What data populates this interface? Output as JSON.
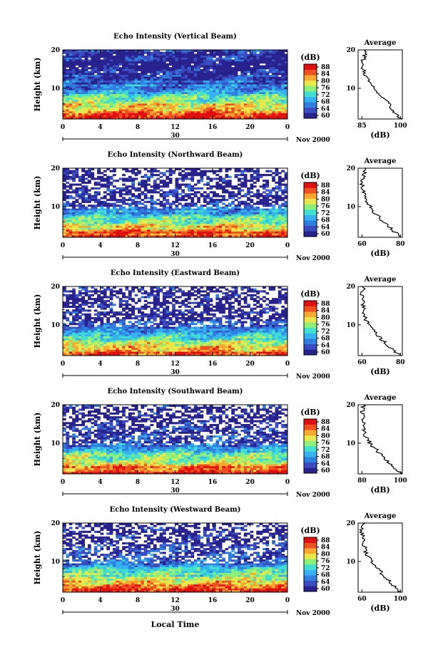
{
  "figure": {
    "xlabel": "Local Time",
    "panels": [
      {
        "title": "Echo Intensity (Vertical Beam)",
        "ylabel": "Height (km)",
        "yticks": [
          "20",
          "10"
        ],
        "xticks": [
          "0",
          "4",
          "8",
          "12",
          "16",
          "20",
          "0"
        ],
        "date_mid": "30",
        "date_right": "Nov 2000",
        "cbar_unit": "(dB)",
        "cbar_ticks": [
          "88",
          "84",
          "80",
          "76",
          "72",
          "68",
          "64",
          "60"
        ],
        "avg_title": "Average",
        "avg_xticks": [
          "85",
          "100"
        ],
        "avg_xlabel": "(dB)",
        "avg_yticks": [
          "20",
          "10"
        ]
      },
      {
        "title": "Echo Intensity (Northward Beam)",
        "ylabel": "Height (km)",
        "yticks": [
          "20",
          "10"
        ],
        "xticks": [
          "0",
          "4",
          "8",
          "12",
          "16",
          "20",
          "0"
        ],
        "date_mid": "30",
        "date_right": "Nov 2000",
        "cbar_unit": "(dB)",
        "cbar_ticks": [
          "88",
          "84",
          "80",
          "76",
          "72",
          "68",
          "64",
          "60"
        ],
        "avg_title": "Average",
        "avg_xticks": [
          "60",
          "80"
        ],
        "avg_xlabel": "(dB)",
        "avg_yticks": [
          "20",
          "10"
        ]
      },
      {
        "title": "Echo Intensity (Eastward Beam)",
        "ylabel": "Height (km)",
        "yticks": [
          "20",
          "10"
        ],
        "xticks": [
          "0",
          "4",
          "8",
          "12",
          "16",
          "20",
          "0"
        ],
        "date_mid": "30",
        "date_right": "Nov 2000",
        "cbar_unit": "(dB)",
        "cbar_ticks": [
          "88",
          "84",
          "80",
          "76",
          "72",
          "68",
          "64",
          "60"
        ],
        "avg_title": "Average",
        "avg_xticks": [
          "60",
          "80"
        ],
        "avg_xlabel": "(dB)",
        "avg_yticks": [
          "20",
          "10"
        ]
      },
      {
        "title": "Echo Intensity (Southward Beam)",
        "ylabel": "Height (km)",
        "yticks": [
          "20",
          "10"
        ],
        "xticks": [
          "0",
          "4",
          "8",
          "12",
          "16",
          "20",
          "0"
        ],
        "date_mid": "30",
        "date_right": "Nov 2000",
        "cbar_unit": "(dB)",
        "cbar_ticks": [
          "88",
          "84",
          "80",
          "76",
          "72",
          "68",
          "64",
          "60"
        ],
        "avg_title": "Average",
        "avg_xticks": [
          "80",
          "100"
        ],
        "avg_xlabel": "(dB)",
        "avg_yticks": [
          "20",
          "10"
        ]
      },
      {
        "title": "Echo Intensity (Westward Beam)",
        "ylabel": "Height (km)",
        "yticks": [
          "20",
          "10"
        ],
        "xticks": [
          "0",
          "4",
          "8",
          "12",
          "16",
          "20",
          "0"
        ],
        "date_mid": "30",
        "date_right": "Nov 2000",
        "cbar_unit": "(dB)",
        "cbar_ticks": [
          "88",
          "84",
          "80",
          "76",
          "72",
          "68",
          "64",
          "60"
        ],
        "avg_title": "Average",
        "avg_xticks": [
          "60",
          "100"
        ],
        "avg_xlabel": "(dB)",
        "avg_yticks": [
          "20",
          "10"
        ]
      }
    ]
  },
  "colors": {
    "colormap": [
      "#27228e",
      "#3b4cc0",
      "#2f7fe0",
      "#36b2f0",
      "#3fe0d0",
      "#8cf07a",
      "#e8e84a",
      "#f8a830",
      "#f05020",
      "#e01010"
    ]
  },
  "chart_data": [
    {
      "type": "heatmap",
      "title": "Echo Intensity (Vertical Beam)",
      "ylabel": "Height (km)",
      "xlim_hours": [
        0,
        24
      ],
      "ylim_km": [
        2,
        20
      ],
      "colorbar_db": [
        60,
        88
      ],
      "profile": {
        "height_km": [
          2,
          4,
          6,
          8,
          10,
          12,
          14,
          16,
          18,
          20
        ],
        "db": [
          100,
          97,
          95,
          91,
          88,
          86,
          84,
          83,
          84,
          85
        ]
      }
    },
    {
      "type": "heatmap",
      "title": "Echo Intensity (Northward Beam)",
      "ylabel": "Height (km)",
      "xlim_hours": [
        0,
        24
      ],
      "ylim_km": [
        2,
        20
      ],
      "colorbar_db": [
        60,
        88
      ],
      "profile": {
        "height_km": [
          2,
          4,
          6,
          8,
          10,
          12,
          14,
          16,
          18,
          20
        ],
        "db": [
          88,
          82,
          76,
          70,
          66,
          62,
          61,
          60,
          61,
          62
        ]
      }
    },
    {
      "type": "heatmap",
      "title": "Echo Intensity (Eastward Beam)",
      "ylabel": "Height (km)",
      "xlim_hours": [
        0,
        24
      ],
      "ylim_km": [
        2,
        20
      ],
      "colorbar_db": [
        60,
        88
      ],
      "profile": {
        "height_km": [
          2,
          4,
          6,
          8,
          10,
          12,
          14,
          16,
          18,
          20
        ],
        "db": [
          90,
          82,
          76,
          70,
          66,
          62,
          61,
          61,
          60,
          62
        ]
      }
    },
    {
      "type": "heatmap",
      "title": "Echo Intensity (Southward Beam)",
      "ylabel": "Height (km)",
      "xlim_hours": [
        0,
        24
      ],
      "ylim_km": [
        2,
        20
      ],
      "colorbar_db": [
        60,
        88
      ],
      "profile": {
        "height_km": [
          2,
          4,
          6,
          8,
          10,
          12,
          14,
          16,
          18,
          20
        ],
        "db": [
          100,
          96,
          92,
          88,
          84,
          82,
          81,
          81,
          80,
          81
        ]
      }
    },
    {
      "type": "heatmap",
      "title": "Echo Intensity (Westward Beam)",
      "ylabel": "Height (km)",
      "xlim_hours": [
        0,
        24
      ],
      "ylim_km": [
        2,
        20
      ],
      "colorbar_db": [
        60,
        88
      ],
      "profile": {
        "height_km": [
          2,
          4,
          6,
          8,
          10,
          12,
          14,
          16,
          18,
          20
        ],
        "db": [
          100,
          92,
          84,
          77,
          70,
          65,
          62,
          61,
          60,
          62
        ]
      }
    }
  ]
}
